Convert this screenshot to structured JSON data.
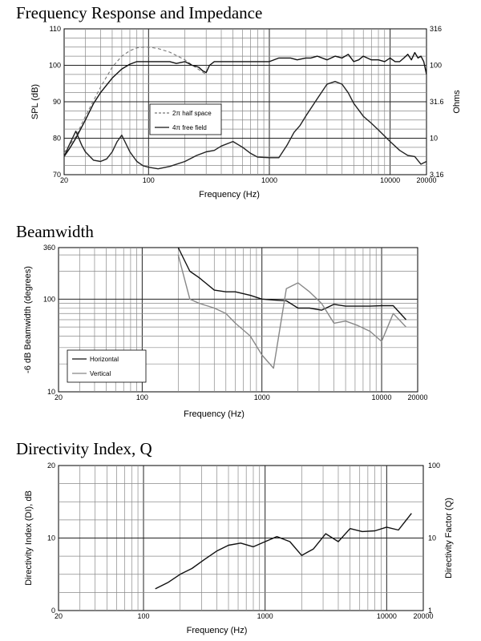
{
  "chart_data": [
    {
      "type": "line",
      "title": "Frequency Response and Impedance",
      "xlabel": "Frequency (Hz)",
      "ylabel": "SPL (dB)",
      "y2label": "Ohms",
      "xscale": "log",
      "xlim": [
        20,
        20000
      ],
      "ylim": [
        70,
        110
      ],
      "y2scale": "log",
      "y2lim": [
        3.16,
        316
      ],
      "xticks": [
        20,
        100,
        1000,
        10000,
        20000
      ],
      "xtick_labels": [
        "20",
        "100",
        "1000",
        "10000",
        "20000"
      ],
      "yticks": [
        70,
        80,
        90,
        100,
        110
      ],
      "ytick_labels": [
        "70",
        "80",
        "90",
        "100",
        "110"
      ],
      "y2ticks": [
        3.16,
        10,
        31.6,
        100,
        316
      ],
      "y2tick_labels": [
        "3.16",
        "10",
        "31.6",
        "100",
        "316"
      ],
      "grid": true,
      "legend_position": "center-left",
      "series": [
        {
          "name": "2π half space",
          "style": "dashed",
          "color": "#777777",
          "axis": "left",
          "x": [
            20,
            25,
            30,
            40,
            50,
            60,
            70,
            80,
            90,
            100,
            120,
            150,
            200,
            250,
            300
          ],
          "y": [
            76,
            80.5,
            86,
            94,
            99.5,
            102.5,
            104,
            104.8,
            105,
            105,
            104.6,
            103.6,
            101.5,
            99.2,
            97.5
          ]
        },
        {
          "name": "4π free field",
          "style": "solid",
          "color": "#111111",
          "axis": "left",
          "x": [
            20,
            22,
            25,
            30,
            35,
            40,
            50,
            60,
            70,
            80,
            100,
            120,
            150,
            170,
            200,
            230,
            260,
            280,
            300,
            320,
            350,
            400,
            450,
            500,
            600,
            700,
            800,
            1000,
            1200,
            1500,
            1700,
            2000,
            2200,
            2500,
            3000,
            3500,
            4000,
            4500,
            5000,
            5500,
            6000,
            7000,
            8000,
            9000,
            10000,
            11000,
            12000,
            13000,
            14000,
            15000,
            16000,
            17000,
            18000,
            19000,
            20000
          ],
          "y": [
            75,
            77,
            80,
            85,
            89.5,
            92.5,
            96.5,
            99,
            100.3,
            101,
            101,
            101,
            101,
            100.5,
            101,
            100,
            99.5,
            98.5,
            98,
            100,
            101,
            101,
            101,
            101,
            101,
            101,
            101,
            101,
            102,
            102,
            101.5,
            102,
            102,
            102.5,
            101.5,
            102.5,
            102,
            103,
            101,
            101.5,
            102.5,
            101.5,
            101.5,
            101,
            102,
            101,
            101,
            102,
            103,
            101.5,
            103.5,
            102,
            102.5,
            101,
            97.5
          ]
        },
        {
          "name": "",
          "style": "solid",
          "color": "#222222",
          "axis": "right",
          "x": [
            20,
            22,
            25,
            28,
            30,
            35,
            40,
            45,
            50,
            55,
            60,
            70,
            80,
            90,
            100,
            120,
            150,
            200,
            250,
            300,
            350,
            400,
            500,
            600,
            700,
            800,
            1000,
            1200,
            1400,
            1600,
            1800,
            2000,
            2500,
            3000,
            3500,
            4000,
            4500,
            5000,
            6000,
            7000,
            8000,
            10000,
            12000,
            14000,
            16000,
            18000,
            20000
          ],
          "y": [
            5.6,
            8,
            12.5,
            8,
            6.5,
            5,
            4.8,
            5.2,
            6.5,
            9,
            11,
            6.5,
            4.8,
            4.2,
            4.0,
            3.8,
            4.1,
            4.8,
            5.8,
            6.5,
            6.8,
            7.8,
            9,
            7.5,
            6.2,
            5.5,
            5.4,
            5.4,
            8,
            12,
            15,
            20,
            35,
            55,
            60,
            55,
            42,
            30,
            20,
            16,
            13,
            9,
            6.8,
            5.8,
            5.6,
            4.4,
            4.8
          ]
        }
      ]
    },
    {
      "type": "line",
      "title": "Beamwidth",
      "xlabel": "Frequency (Hz)",
      "ylabel": "-6 dB Beamwidth (degrees)",
      "xscale": "log",
      "xlim": [
        20,
        20000
      ],
      "yscale": "log",
      "ylim": [
        10,
        360
      ],
      "xticks": [
        20,
        100,
        1000,
        10000,
        20000
      ],
      "xtick_labels": [
        "20",
        "100",
        "1000",
        "10000",
        "20000"
      ],
      "yticks": [
        10,
        100,
        360
      ],
      "ytick_labels": [
        "10",
        "100",
        "360"
      ],
      "grid": true,
      "legend_position": "bottom-left",
      "series": [
        {
          "name": "Horizontal",
          "color": "#111111",
          "x": [
            200,
            250,
            300,
            400,
            500,
            600,
            800,
            1000,
            1250,
            1600,
            2000,
            2500,
            3150,
            4000,
            5000,
            6300,
            8000,
            10000,
            12500,
            16000
          ],
          "y": [
            360,
            200,
            170,
            125,
            120,
            120,
            110,
            100,
            98,
            96,
            80,
            80,
            76,
            88,
            84,
            84,
            84,
            85,
            85,
            60
          ]
        },
        {
          "name": "Vertical",
          "color": "#888888",
          "x": [
            200,
            250,
            300,
            400,
            500,
            600,
            800,
            1000,
            1250,
            1600,
            2000,
            2500,
            3150,
            4000,
            5000,
            6300,
            8000,
            10000,
            12500,
            14000,
            16000
          ],
          "y": [
            300,
            100,
            90,
            80,
            70,
            55,
            40,
            25,
            18,
            130,
            150,
            120,
            90,
            55,
            58,
            52,
            45,
            35,
            70,
            60,
            50
          ]
        }
      ]
    },
    {
      "type": "line",
      "title": "Directivity Index, Q",
      "xlabel": "Frequency (Hz)",
      "ylabel": "Directivity Index (DI), dB",
      "y2label": "Directivity Factor (Q)",
      "xscale": "log",
      "xlim": [
        20,
        20000
      ],
      "ylim": [
        0,
        20
      ],
      "y2scale": "log",
      "y2lim": [
        1,
        100
      ],
      "xticks": [
        20,
        100,
        1000,
        10000,
        20000
      ],
      "xtick_labels": [
        "20",
        "100",
        "1000",
        "10000",
        "20000"
      ],
      "yticks": [
        0,
        10,
        20
      ],
      "ytick_labels": [
        "0",
        "10",
        "20"
      ],
      "y2ticks": [
        1,
        10,
        100
      ],
      "y2tick_labels": [
        "1",
        "10",
        "100"
      ],
      "grid": true,
      "series": [
        {
          "name": "",
          "color": "#111111",
          "x": [
            125,
            160,
            200,
            250,
            315,
            400,
            500,
            630,
            800,
            1000,
            1250,
            1600,
            2000,
            2500,
            3150,
            4000,
            5000,
            6300,
            8000,
            10000,
            12500,
            16000
          ],
          "y": [
            3,
            3.9,
            5,
            5.8,
            7,
            8.2,
            9,
            9.3,
            8.8,
            9.5,
            10.2,
            9.5,
            7.6,
            8.5,
            10.6,
            9.5,
            11.3,
            10.9,
            11,
            11.5,
            11.1,
            13.4
          ]
        }
      ]
    }
  ]
}
